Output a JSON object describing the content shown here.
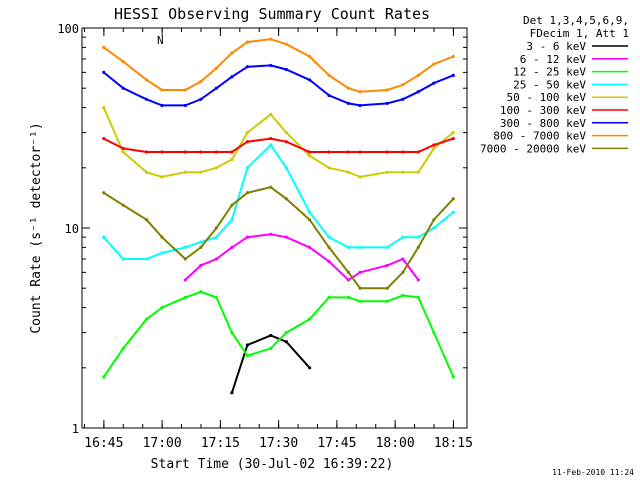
{
  "chart_data": {
    "type": "line",
    "title": "HESSI Observing Summary Count Rates",
    "xlabel": "Start Time (30-Jul-02 16:39:22)",
    "ylabel": "Count Rate (s⁻¹ detector⁻¹)",
    "y_scale": "log",
    "ylim": [
      1,
      100
    ],
    "xlim_minutes": [
      "16:39:22",
      "18:18:30"
    ],
    "x_tick_labels": [
      "16:45",
      "17:00",
      "17:15",
      "17:30",
      "17:45",
      "18:00",
      "18:15"
    ],
    "y_tick_labels": [
      "1",
      "10",
      "100"
    ],
    "legend_header": [
      "Det 1,3,4,5,6,9,",
      "FDecim 1, Att 1"
    ],
    "legend_position": "right",
    "footer_date": "11-Feb-2010 11:24",
    "annotation": "N",
    "x_minutes": [
      5.6,
      10.6,
      16.6,
      20.6,
      26.6,
      30.6,
      34.6,
      38.6,
      42.6,
      48.6,
      52.6,
      58.6,
      63.6,
      68.6,
      71.6,
      78.6,
      82.6,
      86.6,
      90.6,
      95.6
    ],
    "series": [
      {
        "name": "3 - 6 keV",
        "color": "#000000",
        "values": [
          null,
          null,
          null,
          null,
          null,
          null,
          null,
          1.5,
          2.6,
          2.9,
          2.7,
          2.0,
          null,
          null,
          null,
          null,
          null,
          null,
          null,
          null
        ]
      },
      {
        "name": "6 - 12 keV",
        "color": "#ff00ff",
        "values": [
          null,
          null,
          null,
          null,
          5.5,
          6.5,
          7.0,
          8.0,
          9.0,
          9.3,
          9.0,
          8.0,
          6.8,
          5.5,
          6.0,
          6.5,
          7.0,
          5.5,
          null,
          null
        ]
      },
      {
        "name": "12 - 25 keV",
        "color": "#00ff00",
        "values": [
          1.8,
          2.5,
          3.5,
          4.0,
          4.5,
          4.8,
          4.5,
          3.0,
          2.3,
          2.5,
          3.0,
          3.5,
          4.5,
          4.5,
          4.3,
          4.3,
          4.6,
          4.5,
          3.0,
          1.8
        ]
      },
      {
        "name": "25 - 50 keV",
        "color": "#00ffff",
        "values": [
          9.0,
          7.0,
          7.0,
          7.5,
          8.0,
          8.5,
          9.0,
          11.0,
          20.0,
          26.0,
          20.0,
          12.0,
          9.0,
          8.0,
          8.0,
          8.0,
          9.0,
          9.0,
          10.0,
          12.0
        ]
      },
      {
        "name": "50 - 100 keV",
        "color": "#cccc00",
        "values": [
          40.0,
          24.0,
          19.0,
          18.0,
          19.0,
          19.0,
          20.0,
          22.0,
          30.0,
          37.0,
          30.0,
          23.0,
          20.0,
          19.0,
          18.0,
          19.0,
          19.0,
          19.0,
          25.0,
          30.0
        ]
      },
      {
        "name": "100 - 300 keV",
        "color": "#ff0000",
        "values": [
          28.0,
          25.0,
          24.0,
          24.0,
          24.0,
          24.0,
          24.0,
          24.0,
          27.0,
          28.0,
          27.0,
          24.0,
          24.0,
          24.0,
          24.0,
          24.0,
          24.0,
          24.0,
          26.0,
          28.0
        ]
      },
      {
        "name": "300 - 800 keV",
        "color": "#0000ff",
        "values": [
          60.0,
          50.0,
          44.0,
          41.0,
          41.0,
          44.0,
          50.0,
          57.0,
          64.0,
          65.0,
          62.0,
          55.0,
          46.0,
          42.0,
          41.0,
          42.0,
          44.0,
          48.0,
          53.0,
          58.0
        ]
      },
      {
        "name": "800 - 7000 keV",
        "color": "#ff8800",
        "values": [
          80.0,
          68.0,
          55.0,
          49.0,
          49.0,
          54.0,
          63.0,
          75.0,
          85.0,
          88.0,
          83.0,
          72.0,
          58.0,
          50.0,
          48.0,
          49.0,
          52.0,
          58.0,
          66.0,
          72.0
        ]
      },
      {
        "name": "7000 - 20000 keV",
        "color": "#808000",
        "values": [
          15.0,
          13.0,
          11.0,
          9.0,
          7.0,
          8.0,
          10.0,
          13.0,
          15.0,
          16.0,
          14.0,
          11.0,
          8.0,
          6.0,
          5.0,
          5.0,
          6.0,
          8.0,
          11.0,
          14.0
        ]
      }
    ]
  }
}
